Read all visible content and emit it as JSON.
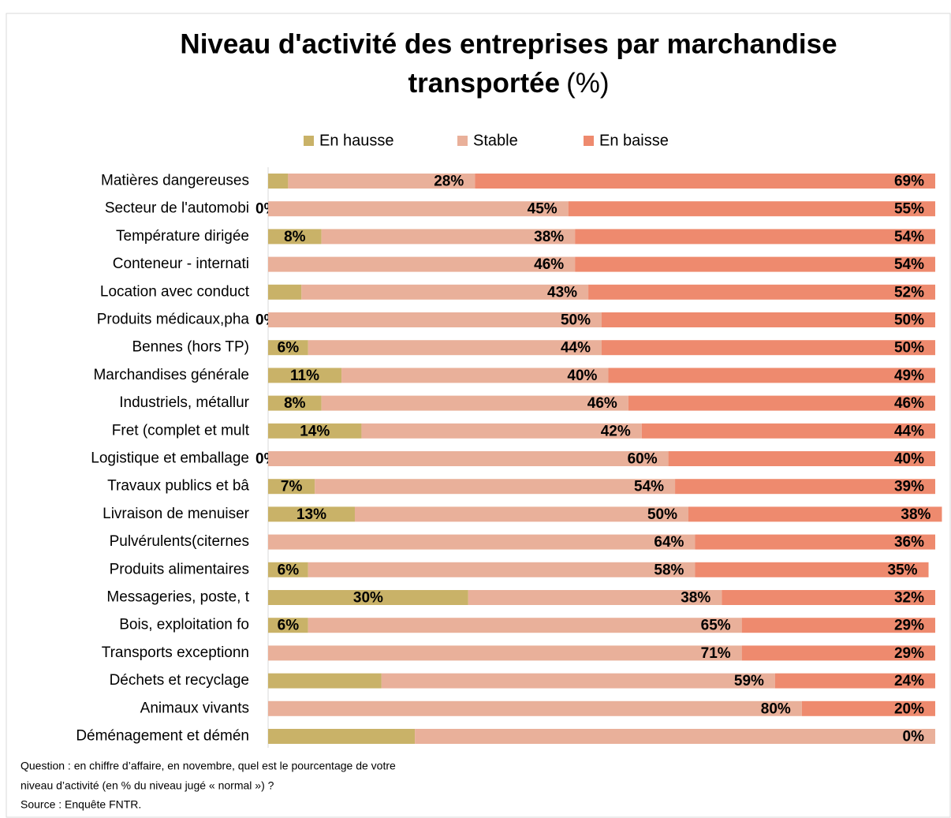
{
  "chart_data": {
    "type": "stacked-bar-horizontal",
    "title_lines": [
      "Niveau d'activité des entreprises par marchandise",
      "transportée"
    ],
    "title_unit": "(%)",
    "categories": [
      "Matières dangereuses",
      "Secteur de l'automobi",
      "Température dirigée",
      "Conteneur - internati",
      "Location avec conduct",
      "Produits médicaux,pha",
      "Bennes (hors TP)",
      "Marchandises générale",
      "Industriels, métallur",
      "Fret (complet et mult",
      "Logistique et emballage",
      "Travaux publics et bâ",
      "Livraison de menuiser",
      "Pulvérulents(citernes",
      "Produits alimentaires",
      "Messageries, poste, t",
      "Bois, exploitation fo",
      "Transports exceptionn",
      "Déchets et recyclage",
      "Animaux vivants",
      "Déménagement et démén"
    ],
    "series": [
      {
        "name": "En hausse",
        "color": "#c9b268",
        "values": [
          3,
          0,
          8,
          0,
          5,
          0,
          6,
          11,
          8,
          14,
          0,
          7,
          13,
          0,
          6,
          30,
          6,
          0,
          17,
          0,
          22
        ],
        "value_labels": [
          null,
          "0%",
          "8%",
          null,
          null,
          "0%",
          "6%",
          "11%",
          "8%",
          "14%",
          "0%",
          "7%",
          "13%",
          null,
          "6%",
          "30%",
          "6%",
          null,
          null,
          null,
          null
        ]
      },
      {
        "name": "Stable",
        "color": "#e9b09a",
        "values": [
          28,
          45,
          38,
          46,
          43,
          50,
          44,
          40,
          46,
          42,
          60,
          54,
          50,
          64,
          58,
          38,
          65,
          71,
          59,
          80,
          78
        ],
        "value_labels": [
          "28%",
          "45%",
          "38%",
          "46%",
          "43%",
          "50%",
          "44%",
          "40%",
          "46%",
          "42%",
          "60%",
          "54%",
          "50%",
          "64%",
          "58%",
          "38%",
          "65%",
          "71%",
          "59%",
          "80%",
          null
        ]
      },
      {
        "name": "En baisse",
        "color": "#ee8a6e",
        "values": [
          69,
          55,
          54,
          54,
          52,
          50,
          50,
          49,
          46,
          44,
          40,
          39,
          38,
          36,
          35,
          32,
          29,
          29,
          24,
          20,
          0
        ],
        "value_labels": [
          "69%",
          "55%",
          "54%",
          "54%",
          "52%",
          "50%",
          "50%",
          "49%",
          "46%",
          "44%",
          "40%",
          "39%",
          "38%",
          "36%",
          "35%",
          "32%",
          "29%",
          "29%",
          "24%",
          "20%",
          "0%"
        ]
      }
    ],
    "xlim": [
      0,
      100
    ],
    "notes": [
      "Question : en chiffre d’affaire, en novembre, quel est le pourcentage de votre",
      "niveau d’activité (en % du niveau jugé « normal ») ?",
      "Source : Enquête FNTR."
    ]
  }
}
